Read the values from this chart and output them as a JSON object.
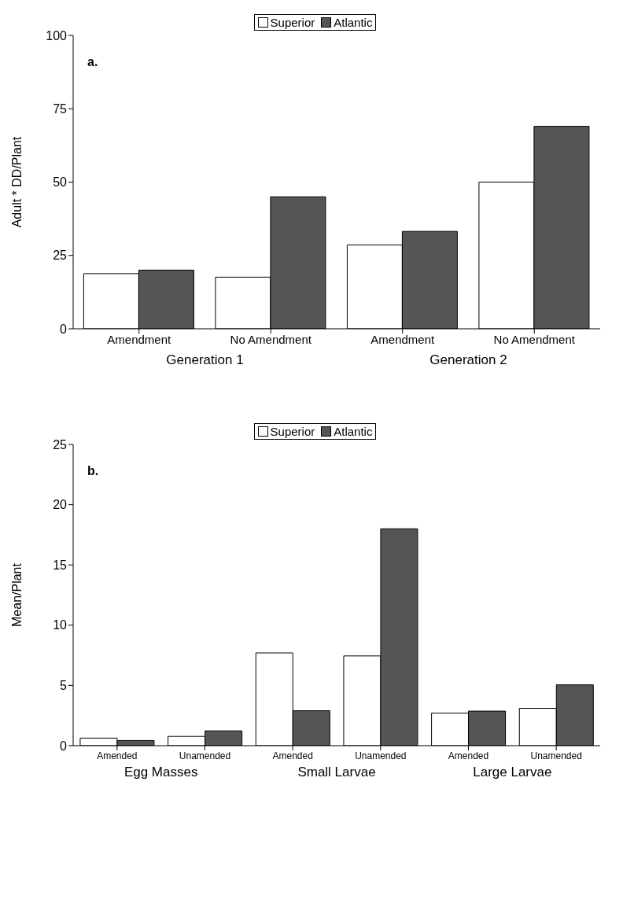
{
  "chart_data": [
    {
      "type": "bar",
      "title": "a.",
      "ylabel": "Adult * DD/Plant",
      "categories": [
        "Amendment",
        "No Amendment",
        "Amendment",
        "No Amendment"
      ],
      "annotations": [
        "Generation 1",
        "Generation 2"
      ],
      "ylim": [
        0,
        100
      ],
      "yticks": [
        0,
        25,
        50,
        75,
        100
      ],
      "legend": "top",
      "grid": false,
      "series": [
        {
          "name": "Superior",
          "color": "#ffffff",
          "values": [
            18.8,
            17.6,
            28.6,
            50
          ]
        },
        {
          "name": "Atlantic",
          "color": "#555555",
          "values": [
            20,
            45,
            33.2,
            69
          ]
        }
      ]
    },
    {
      "type": "bar",
      "title": "b.",
      "ylabel": "Mean/Plant",
      "categories": [
        "Amended",
        "Unamended",
        "Amended",
        "Unamended",
        "Amended",
        "Unamended"
      ],
      "annotations": [
        "Egg Masses",
        "Small Larvae",
        "Large Larvae"
      ],
      "ylim": [
        0,
        25
      ],
      "yticks": [
        0,
        5,
        10,
        15,
        20,
        25
      ],
      "legend": "top",
      "grid": false,
      "series": [
        {
          "name": "Superior",
          "color": "#ffffff",
          "values": [
            0.63,
            0.77,
            7.7,
            7.45,
            2.7,
            3.1
          ]
        },
        {
          "name": "Atlantic",
          "color": "#555555",
          "values": [
            0.43,
            1.23,
            2.9,
            18.0,
            2.87,
            5.05
          ]
        }
      ]
    }
  ]
}
